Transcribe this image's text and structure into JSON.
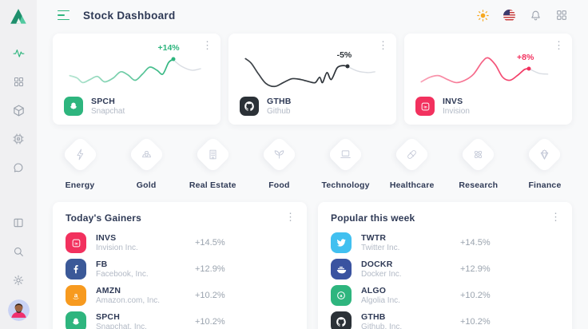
{
  "header": {
    "title": "Stock Dashboard",
    "icons": [
      "sun-icon",
      "flag-us-icon",
      "bell-icon",
      "apps-grid-icon"
    ]
  },
  "sidebar": {
    "logo": "brand-triangle-logo",
    "top_items": [
      {
        "icon": "activity",
        "active": true
      },
      {
        "icon": "grid",
        "active": false
      },
      {
        "icon": "cube",
        "active": false
      },
      {
        "icon": "cpu",
        "active": false
      },
      {
        "icon": "chat",
        "active": false
      }
    ],
    "bottom_items": [
      {
        "icon": "layout",
        "active": false
      },
      {
        "icon": "search",
        "active": false
      },
      {
        "icon": "gear",
        "active": false
      }
    ],
    "avatar": "user-avatar"
  },
  "stock_cards": [
    {
      "ticker": "SPCH",
      "company": "Snapchat",
      "change": "+14%",
      "brand": "snapchat",
      "color": "#2eb57e",
      "change_color": "#2eb57e",
      "fade_start": 0.35,
      "sparkline": {
        "main": [
          [
            4,
            38
          ],
          [
            9,
            41
          ],
          [
            13,
            47
          ],
          [
            18,
            43
          ],
          [
            23,
            39
          ],
          [
            28,
            46
          ],
          [
            34,
            41
          ],
          [
            39,
            33
          ],
          [
            44,
            37
          ],
          [
            49,
            44
          ],
          [
            54,
            36
          ],
          [
            59,
            27
          ],
          [
            64,
            31
          ],
          [
            68,
            36
          ],
          [
            72,
            21
          ],
          [
            75,
            17
          ]
        ],
        "tail": [
          [
            75,
            17
          ],
          [
            81,
            26
          ],
          [
            88,
            31
          ],
          [
            94,
            29
          ]
        ]
      }
    },
    {
      "ticker": "GTHB",
      "company": "Github",
      "change": "-5%",
      "brand": "github",
      "color": "#2b3137",
      "change_color": "#2b3137",
      "fade_start": 0.9,
      "sparkline": {
        "main": [
          [
            4,
            16
          ],
          [
            8,
            22
          ],
          [
            13,
            36
          ],
          [
            18,
            48
          ],
          [
            24,
            52
          ],
          [
            30,
            47
          ],
          [
            36,
            42
          ],
          [
            42,
            43
          ],
          [
            48,
            46
          ],
          [
            52,
            47
          ],
          [
            55,
            40
          ],
          [
            57,
            47
          ],
          [
            60,
            34
          ],
          [
            63,
            43
          ],
          [
            67,
            28
          ],
          [
            71,
            25
          ],
          [
            74,
            26
          ]
        ],
        "tail": [
          [
            74,
            26
          ],
          [
            81,
            32
          ],
          [
            88,
            34
          ],
          [
            93,
            33
          ]
        ]
      }
    },
    {
      "ticker": "INVS",
      "company": "Invision",
      "change": "+8%",
      "brand": "invision",
      "color": "#f2315e",
      "change_color": "#f2315e",
      "fade_start": 0.45,
      "sparkline": {
        "main": [
          [
            4,
            46
          ],
          [
            10,
            40
          ],
          [
            16,
            38
          ],
          [
            22,
            43
          ],
          [
            28,
            47
          ],
          [
            34,
            44
          ],
          [
            40,
            36
          ],
          [
            46,
            20
          ],
          [
            50,
            15
          ],
          [
            55,
            24
          ],
          [
            60,
            40
          ],
          [
            65,
            44
          ],
          [
            70,
            38
          ],
          [
            75,
            30
          ],
          [
            78,
            29
          ]
        ],
        "tail": [
          [
            78,
            29
          ],
          [
            85,
            35
          ],
          [
            91,
            36
          ]
        ]
      }
    }
  ],
  "categories": [
    {
      "label": "Energy",
      "icon": "energy-icon"
    },
    {
      "label": "Gold",
      "icon": "gold-icon"
    },
    {
      "label": "Real Estate",
      "icon": "real-estate-icon"
    },
    {
      "label": "Food",
      "icon": "food-icon"
    },
    {
      "label": "Technology",
      "icon": "technology-icon"
    },
    {
      "label": "Healthcare",
      "icon": "healthcare-icon"
    },
    {
      "label": "Research",
      "icon": "research-icon"
    },
    {
      "label": "Finance",
      "icon": "finance-icon"
    }
  ],
  "panels": [
    {
      "title": "Today's Gainers",
      "rows": [
        {
          "ticker": "INVS",
          "company": "Invision Inc.",
          "change": "+14.5%",
          "brand": "invision",
          "color": "#f2315e"
        },
        {
          "ticker": "FB",
          "company": "Facebook, Inc.",
          "change": "+12.9%",
          "brand": "facebook",
          "color": "#3b5998"
        },
        {
          "ticker": "AMZN",
          "company": "Amazon.com, Inc.",
          "change": "+10.2%",
          "brand": "amazon",
          "color": "#f79a1f"
        },
        {
          "ticker": "SPCH",
          "company": "Snapchat, Inc.",
          "change": "+10.2%",
          "brand": "snapchat",
          "color": "#2eb57e"
        }
      ]
    },
    {
      "title": "Popular this week",
      "rows": [
        {
          "ticker": "TWTR",
          "company": "Twitter Inc.",
          "change": "+14.5%",
          "brand": "twitter",
          "color": "#41c0f0"
        },
        {
          "ticker": "DOCKR",
          "company": "Docker Inc.",
          "change": "+12.9%",
          "brand": "docker",
          "color": "#3a53a0"
        },
        {
          "ticker": "ALGO",
          "company": "Algolia Inc.",
          "change": "+10.2%",
          "brand": "algolia",
          "color": "#2eb57e"
        },
        {
          "ticker": "GTHB",
          "company": "Github, Inc.",
          "change": "+10.2%",
          "brand": "github",
          "color": "#2b3137"
        }
      ]
    }
  ]
}
